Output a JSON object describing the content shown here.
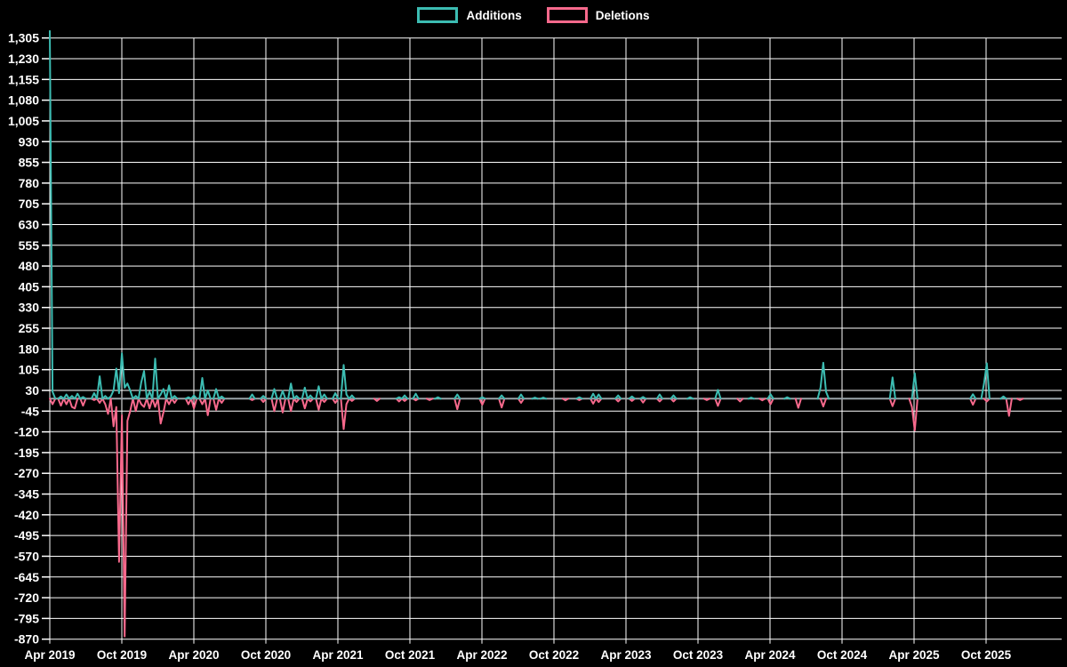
{
  "legend": [
    {
      "label": "Additions",
      "color": "#3cbcb2"
    },
    {
      "label": "Deletions",
      "color": "#f7698c"
    }
  ],
  "chart_data": {
    "type": "line",
    "title": "",
    "x_unit": "week",
    "weeks_total": 365,
    "legend_position": "top-center",
    "background": "#000000",
    "grid_color": "#ffffff",
    "baseline_color": "#9aa3a8",
    "text_color": "#ffffff",
    "x_tick_labels": [
      "Apr 2019",
      "Oct 2019",
      "Apr 2020",
      "Oct 2020",
      "Apr 2021",
      "Oct 2021",
      "Apr 2022",
      "Oct 2022",
      "Apr 2023",
      "Oct 2023",
      "Apr 2024",
      "Oct 2024",
      "Apr 2025",
      "Oct 2025"
    ],
    "y_tick_labels": [
      "1,305",
      "1,230",
      "1,155",
      "1,080",
      "1,005",
      "930",
      "855",
      "780",
      "705",
      "630",
      "555",
      "480",
      "405",
      "330",
      "255",
      "180",
      "105",
      "30",
      "-45",
      "-120",
      "-195",
      "-270",
      "-345",
      "-420",
      "-495",
      "-570",
      "-645",
      "-720",
      "-795",
      "-870"
    ],
    "y_axis": {
      "min": -870,
      "max": 1305,
      "step": 75
    },
    "baseline": 0,
    "series": [
      {
        "name": "Additions",
        "color": "#3cbcb2",
        "points": {
          "0": 1330,
          "1": 25,
          "4": 8,
          "6": 15,
          "8": 10,
          "10": 18,
          "12": 6,
          "16": 20,
          "18": 81,
          "20": 10,
          "22": 8,
          "23": 30,
          "24": 109,
          "25": 20,
          "26": 164,
          "27": 40,
          "28": 55,
          "29": 30,
          "31": 10,
          "33": 60,
          "34": 100,
          "36": 25,
          "38": 145,
          "40": 15,
          "41": 35,
          "43": 48,
          "45": 10,
          "50": 5,
          "52": 12,
          "55": 75,
          "57": 30,
          "60": 35,
          "62": 8,
          "73": 15,
          "77": 10,
          "81": 35,
          "84": 28,
          "87": 55,
          "89": 10,
          "92": 40,
          "94": 12,
          "97": 45,
          "99": 15,
          "103": 20,
          "106": 122,
          "107": 15,
          "109": 12,
          "126": 5,
          "128": 12,
          "132": 18,
          "140": 5,
          "147": 15,
          "156": 5,
          "163": 12,
          "170": 15,
          "175": 4,
          "178": 4,
          "191": 5,
          "196": 18,
          "198": 15,
          "205": 12,
          "210": 8,
          "214": 6,
          "220": 15,
          "225": 12,
          "231": 5,
          "241": 32,
          "253": 4,
          "260": 16,
          "266": 5,
          "278": 40,
          "279": 130,
          "280": 25,
          "304": 77,
          "312": 92,
          "333": 16,
          "337": 55,
          "338": 128,
          "344": 8
        }
      },
      {
        "name": "Deletions",
        "color": "#f7698c",
        "points": {
          "1": -20,
          "4": -25,
          "6": -20,
          "8": -30,
          "9": -35,
          "12": -25,
          "16": -5,
          "18": -15,
          "20": -20,
          "21": -55,
          "23": -100,
          "24": -30,
          "25": -590,
          "26": -60,
          "27": -860,
          "28": -80,
          "29": -45,
          "31": -45,
          "33": -20,
          "34": -30,
          "36": -35,
          "38": -30,
          "40": -90,
          "41": -50,
          "43": -20,
          "45": -15,
          "50": -20,
          "52": -35,
          "55": -20,
          "57": -60,
          "60": -40,
          "62": -15,
          "73": -5,
          "77": -12,
          "81": -45,
          "84": -50,
          "87": -45,
          "89": -12,
          "92": -35,
          "94": -10,
          "97": -40,
          "99": -12,
          "103": -15,
          "106": -110,
          "107": -20,
          "109": -8,
          "118": -8,
          "126": -10,
          "128": -8,
          "132": -6,
          "137": -5,
          "147": -38,
          "156": -22,
          "163": -32,
          "170": -15,
          "186": -6,
          "191": -5,
          "196": -18,
          "198": -12,
          "205": -10,
          "210": -8,
          "214": -14,
          "220": -10,
          "225": -10,
          "237": -5,
          "241": -26,
          "249": -10,
          "257": -6,
          "260": -20,
          "270": -33,
          "279": -28,
          "304": -27,
          "311": -30,
          "312": -115,
          "333": -22,
          "338": -10,
          "346": -62,
          "350": -5
        }
      }
    ]
  }
}
